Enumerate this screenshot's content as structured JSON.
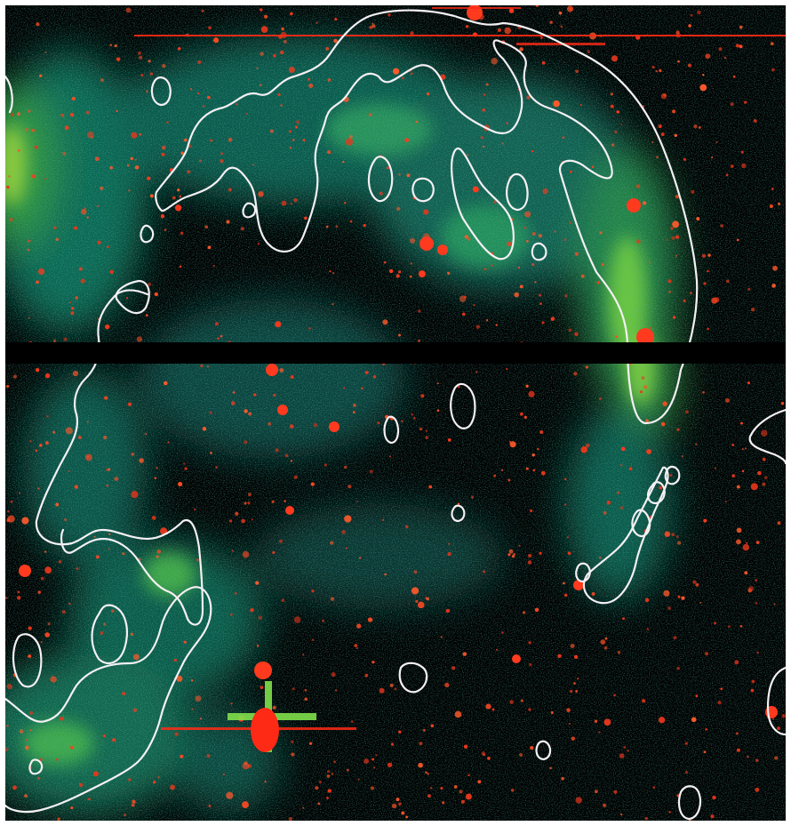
{
  "image": {
    "kind": "astronomical false-colour image with white contour overlay",
    "palette": {
      "background": "#000000",
      "diffuse_low": "#0b5a52",
      "diffuse_mid": "#1f9f7a",
      "diffuse_high": "#6fd03c",
      "stars": "#ff3a1e",
      "contours": "#f4f0f4",
      "gap_band": "#000000",
      "border": "#ffffff"
    },
    "contour_count": 24,
    "has_chip_gap": true
  }
}
